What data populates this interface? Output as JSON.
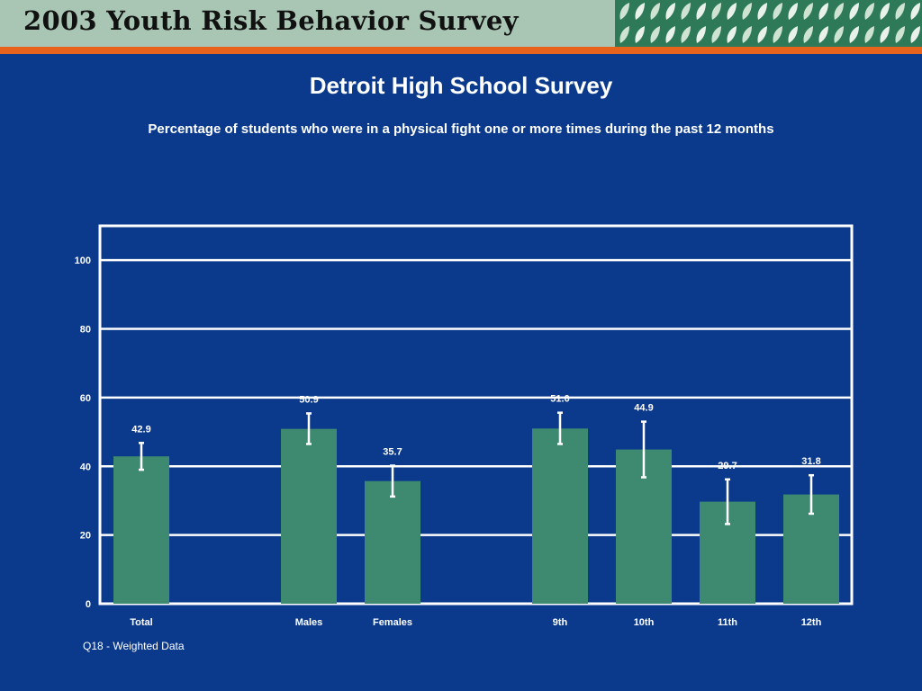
{
  "header": {
    "banner_title": "2003 Youth Risk Behavior Survey",
    "accent_color": "#e8641c",
    "pattern_icon": "leaf-pattern-icon"
  },
  "title": "Detroit High School Survey",
  "subtitle": "Percentage of students who were in a physical fight one or more times during the past 12 months",
  "footnote": "Q18 - Weighted Data",
  "chart_data": {
    "type": "bar",
    "categories": [
      "Total",
      "Males",
      "Females",
      "9th",
      "10th",
      "11th",
      "12th"
    ],
    "values": [
      42.9,
      50.9,
      35.7,
      51.0,
      44.9,
      29.7,
      31.8
    ],
    "value_labels": [
      "42.9",
      "50.9",
      "35.7",
      "51.0",
      "44.9",
      "29.7",
      "31.8"
    ],
    "error_low": [
      39.0,
      46.5,
      31.2,
      46.5,
      36.8,
      23.2,
      26.2
    ],
    "error_high": [
      46.8,
      55.4,
      40.2,
      55.6,
      53.0,
      36.2,
      37.4
    ],
    "groups": [
      [
        0
      ],
      [
        1,
        2
      ],
      [
        3,
        4,
        5,
        6
      ]
    ],
    "yticks": [
      0,
      20,
      40,
      60,
      80,
      100
    ],
    "ylim": [
      0,
      110
    ],
    "grid": true,
    "bar_color": "#3d8a70",
    "xlabel": "",
    "ylabel": ""
  }
}
